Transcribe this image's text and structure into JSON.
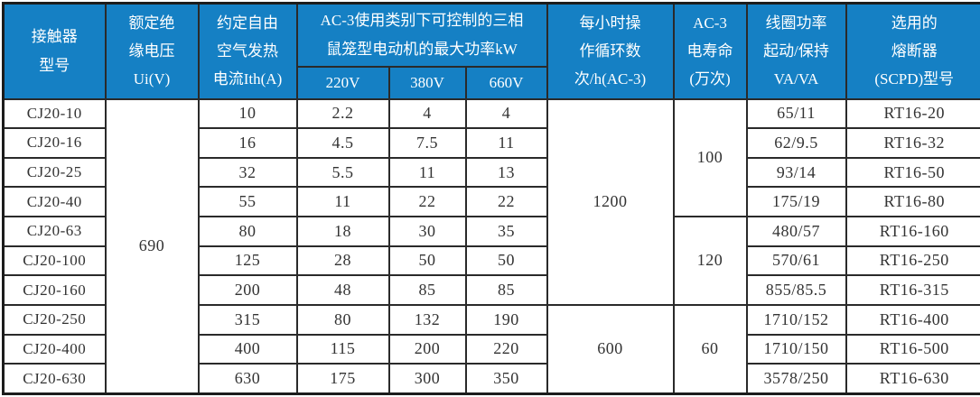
{
  "colors": {
    "header_bg": "#1580c4",
    "header_text": "#ffffff",
    "border": "#2a2a2a",
    "body_text": "#333333"
  },
  "table": {
    "header": {
      "model": "接触器\n型号",
      "ui": "额定绝\n缘电压\nUi(V)",
      "ith": "约定自由\n空气发热\n电流Ith(A)",
      "ac3_power": "AC-3使用类别下可控制的三相\n鼠笼型电动机的最大功率kW",
      "v220": "220V",
      "v380": "380V",
      "v660": "660V",
      "cycles": "每小时操\n作循环数\n次/h(AC-3)",
      "life": "AC-3\n电寿命\n(万次)",
      "coil": "线圈功率\n起动/保持\nVA/VA",
      "fuse": "选用的\n熔断器\n(SCPD)型号"
    },
    "rows": [
      {
        "cells": [
          {
            "v": "CJ20-10",
            "model": true
          },
          {
            "v": "690",
            "rowspan": 10
          },
          {
            "v": "10"
          },
          {
            "v": "2.2"
          },
          {
            "v": "4"
          },
          {
            "v": "4"
          },
          {
            "v": "1200",
            "rowspan": 7
          },
          {
            "v": "100",
            "rowspan": 4
          },
          {
            "v": "65/11"
          },
          {
            "v": "RT16-20"
          }
        ]
      },
      {
        "cells": [
          {
            "v": "CJ20-16",
            "model": true
          },
          {
            "v": "16"
          },
          {
            "v": "4.5"
          },
          {
            "v": "7.5"
          },
          {
            "v": "11"
          },
          {
            "v": "62/9.5"
          },
          {
            "v": "RT16-32"
          }
        ]
      },
      {
        "cells": [
          {
            "v": "CJ20-25",
            "model": true
          },
          {
            "v": "32"
          },
          {
            "v": "5.5"
          },
          {
            "v": "11"
          },
          {
            "v": "13"
          },
          {
            "v": "93/14"
          },
          {
            "v": "RT16-50"
          }
        ]
      },
      {
        "cells": [
          {
            "v": "CJ20-40",
            "model": true
          },
          {
            "v": "55"
          },
          {
            "v": "11"
          },
          {
            "v": "22"
          },
          {
            "v": "22"
          },
          {
            "v": "175/19"
          },
          {
            "v": "RT16-80"
          }
        ]
      },
      {
        "cells": [
          {
            "v": "CJ20-63",
            "model": true
          },
          {
            "v": "80"
          },
          {
            "v": "18"
          },
          {
            "v": "30"
          },
          {
            "v": "35"
          },
          {
            "v": "120",
            "rowspan": 3
          },
          {
            "v": "480/57"
          },
          {
            "v": "RT16-160"
          }
        ]
      },
      {
        "cells": [
          {
            "v": "CJ20-100",
            "model": true
          },
          {
            "v": "125"
          },
          {
            "v": "28"
          },
          {
            "v": "50"
          },
          {
            "v": "50"
          },
          {
            "v": "570/61"
          },
          {
            "v": "RT16-250"
          }
        ]
      },
      {
        "cells": [
          {
            "v": "CJ20-160",
            "model": true
          },
          {
            "v": "200"
          },
          {
            "v": "48"
          },
          {
            "v": "85"
          },
          {
            "v": "85"
          },
          {
            "v": "855/85.5"
          },
          {
            "v": "RT16-315"
          }
        ]
      },
      {
        "cells": [
          {
            "v": "CJ20-250",
            "model": true
          },
          {
            "v": "315"
          },
          {
            "v": "80"
          },
          {
            "v": "132"
          },
          {
            "v": "190"
          },
          {
            "v": "600",
            "rowspan": 3
          },
          {
            "v": "60",
            "rowspan": 3
          },
          {
            "v": "1710/152"
          },
          {
            "v": "RT16-400"
          }
        ]
      },
      {
        "cells": [
          {
            "v": "CJ20-400",
            "model": true
          },
          {
            "v": "400"
          },
          {
            "v": "115"
          },
          {
            "v": "200"
          },
          {
            "v": "220"
          },
          {
            "v": "1710/150"
          },
          {
            "v": "RT16-500"
          }
        ]
      },
      {
        "cells": [
          {
            "v": "CJ20-630",
            "model": true
          },
          {
            "v": "630"
          },
          {
            "v": "175"
          },
          {
            "v": "300"
          },
          {
            "v": "350"
          },
          {
            "v": "3578/250"
          },
          {
            "v": "RT16-630"
          }
        ]
      }
    ]
  }
}
